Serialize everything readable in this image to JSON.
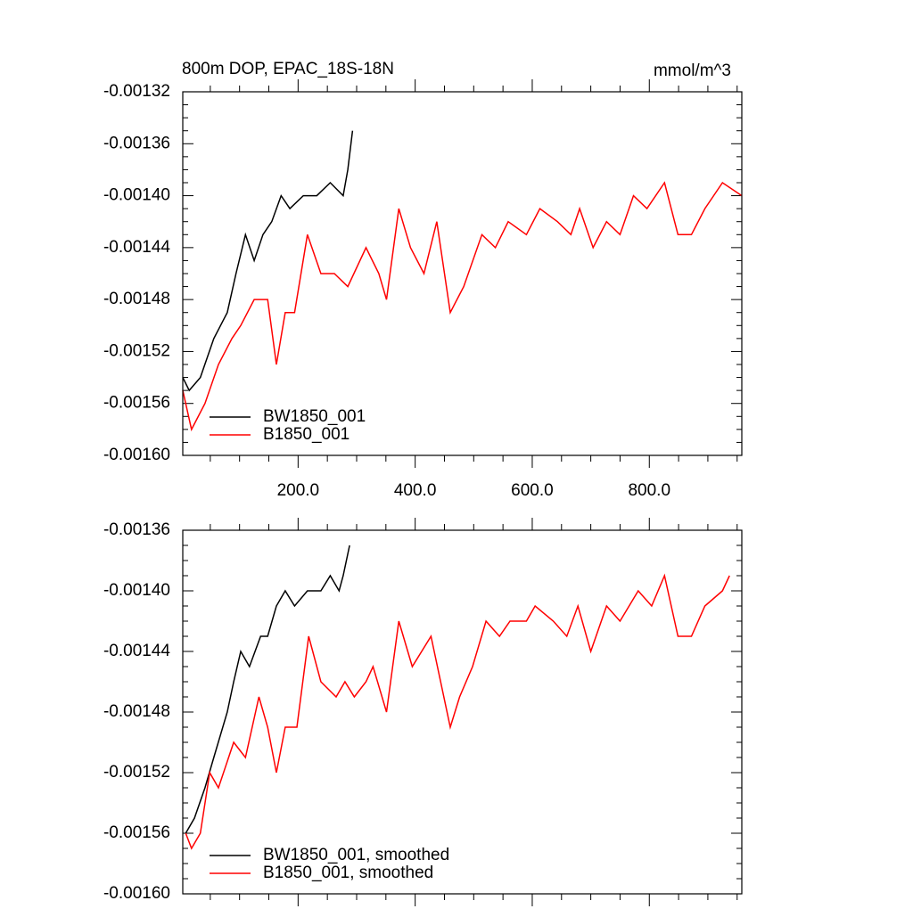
{
  "chart_data": [
    {
      "type": "line",
      "title": "800m DOP, EPAC_18S-18N",
      "units": "mmol/m^3",
      "xlim": [
        3,
        958
      ],
      "ylim": [
        -0.0016,
        -0.00132
      ],
      "xticks": [
        {
          "value": 200,
          "label": "200.0"
        },
        {
          "value": 400,
          "label": "400.0"
        },
        {
          "value": 600,
          "label": "600.0"
        },
        {
          "value": 800,
          "label": "800.0"
        }
      ],
      "yticks": [
        {
          "value": -0.00132,
          "label": "-0.00132"
        },
        {
          "value": -0.00136,
          "label": "-0.00136"
        },
        {
          "value": -0.0014,
          "label": "-0.00140"
        },
        {
          "value": -0.00144,
          "label": "-0.00144"
        },
        {
          "value": -0.00148,
          "label": "-0.00148"
        },
        {
          "value": -0.00152,
          "label": "-0.00152"
        },
        {
          "value": -0.00156,
          "label": "-0.00156"
        },
        {
          "value": -0.0016,
          "label": "-0.00160"
        }
      ],
      "legend": "lower left",
      "series": [
        {
          "name": "BW1850_001",
          "color": "#000000",
          "x": [
            3,
            14,
            33,
            56,
            79,
            94,
            110,
            125,
            140,
            155,
            171,
            186,
            209,
            232,
            255,
            277,
            285,
            293
          ],
          "values": [
            -0.00154,
            -0.00155,
            -0.00154,
            -0.00151,
            -0.00149,
            -0.00146,
            -0.00143,
            -0.00145,
            -0.00143,
            -0.00142,
            -0.0014,
            -0.00141,
            -0.0014,
            -0.0014,
            -0.00139,
            -0.0014,
            -0.00138,
            -0.00135
          ]
        },
        {
          "name": "B1850_001",
          "color": "#ff0000",
          "x": [
            3,
            18,
            41,
            64,
            87,
            102,
            125,
            148,
            163,
            178,
            194,
            216,
            239,
            262,
            285,
            316,
            338,
            351,
            372,
            392,
            415,
            437,
            460,
            483,
            514,
            537,
            559,
            590,
            613,
            643,
            666,
            681,
            704,
            727,
            750,
            773,
            796,
            826,
            849,
            872,
            895,
            925,
            958
          ],
          "values": [
            -0.00155,
            -0.00158,
            -0.00156,
            -0.00153,
            -0.00151,
            -0.0015,
            -0.00148,
            -0.00148,
            -0.00153,
            -0.00149,
            -0.00149,
            -0.00143,
            -0.00146,
            -0.00146,
            -0.00147,
            -0.00144,
            -0.00146,
            -0.00148,
            -0.00141,
            -0.00144,
            -0.00146,
            -0.00142,
            -0.00149,
            -0.00147,
            -0.00143,
            -0.00144,
            -0.00142,
            -0.00143,
            -0.00141,
            -0.00142,
            -0.00143,
            -0.00141,
            -0.00144,
            -0.00142,
            -0.00143,
            -0.0014,
            -0.00141,
            -0.00139,
            -0.00143,
            -0.00143,
            -0.00141,
            -0.00139,
            -0.0014
          ]
        }
      ]
    },
    {
      "type": "line",
      "xlim": [
        3,
        958
      ],
      "ylim": [
        -0.0016,
        -0.00136
      ],
      "xticks": [
        200,
        400,
        600,
        800
      ],
      "yticks": [
        {
          "value": -0.00136,
          "label": "-0.00136"
        },
        {
          "value": -0.0014,
          "label": "-0.00140"
        },
        {
          "value": -0.00144,
          "label": "-0.00144"
        },
        {
          "value": -0.00148,
          "label": "-0.00148"
        },
        {
          "value": -0.00152,
          "label": "-0.00152"
        },
        {
          "value": -0.00156,
          "label": "-0.00156"
        },
        {
          "value": -0.0016,
          "label": "-0.00160"
        }
      ],
      "legend": "lower left",
      "series": [
        {
          "name": "BW1850_001, smoothed",
          "color": "#000000",
          "x": [
            8,
            23,
            41,
            56,
            79,
            90,
            102,
            117,
            136,
            148,
            163,
            178,
            194,
            216,
            239,
            255,
            270,
            277,
            288
          ],
          "values": [
            -0.00156,
            -0.00155,
            -0.00153,
            -0.00151,
            -0.00148,
            -0.00146,
            -0.00144,
            -0.00145,
            -0.00143,
            -0.00143,
            -0.00141,
            -0.0014,
            -0.00141,
            -0.0014,
            -0.0014,
            -0.00139,
            -0.0014,
            -0.00139,
            -0.00137
          ]
        },
        {
          "name": "B1850_001, smoothed",
          "color": "#ff0000",
          "x": [
            8,
            18,
            33,
            49,
            64,
            90,
            110,
            133,
            148,
            163,
            178,
            198,
            218,
            239,
            265,
            280,
            296,
            316,
            328,
            351,
            372,
            395,
            427,
            460,
            476,
            498,
            521,
            544,
            562,
            590,
            605,
            636,
            659,
            678,
            700,
            727,
            750,
            781,
            804,
            826,
            849,
            872,
            895,
            925,
            937
          ],
          "values": [
            -0.00156,
            -0.00157,
            -0.00156,
            -0.00152,
            -0.00153,
            -0.0015,
            -0.00151,
            -0.00147,
            -0.00149,
            -0.00152,
            -0.00149,
            -0.00149,
            -0.00143,
            -0.00146,
            -0.00147,
            -0.00146,
            -0.00147,
            -0.00146,
            -0.00145,
            -0.00148,
            -0.00142,
            -0.00145,
            -0.00143,
            -0.00149,
            -0.00147,
            -0.00145,
            -0.00142,
            -0.00143,
            -0.00142,
            -0.00142,
            -0.00141,
            -0.00142,
            -0.00143,
            -0.00141,
            -0.00144,
            -0.00141,
            -0.00142,
            -0.0014,
            -0.00141,
            -0.00139,
            -0.00143,
            -0.00143,
            -0.00141,
            -0.0014,
            -0.00139
          ]
        }
      ]
    }
  ]
}
